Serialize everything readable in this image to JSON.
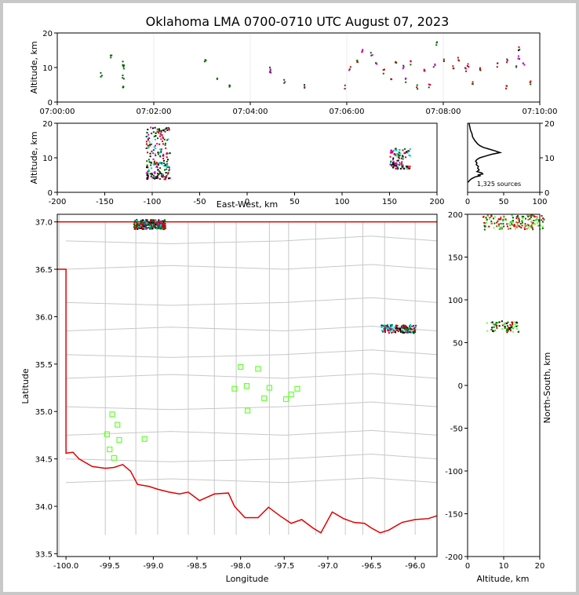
{
  "title": "Oklahoma LMA 0700-0710 UTC August 07, 2023",
  "colors": {
    "state_border": "#e00000",
    "county_lines": "#c8c8c8",
    "stations": "#66ff33",
    "profile_line": "#000000",
    "early_source": "#00cccc",
    "mid_source": "#006600",
    "late_source": "#cc0000"
  },
  "chart_data": [
    {
      "id": "time-height",
      "type": "scatter",
      "xlabel": "",
      "ylabel": "Altitude, km",
      "xticks": [
        "07:00:00",
        "07:02:00",
        "07:04:00",
        "07:06:00",
        "07:08:00",
        "07:10:00"
      ],
      "xlim_minutes": [
        0,
        10
      ],
      "ylim": [
        0,
        20
      ],
      "yticks": [
        0,
        10,
        20
      ],
      "clusters_time_min_alt_km": [
        [
          0.9,
          8.0
        ],
        [
          1.1,
          13.5
        ],
        [
          1.35,
          11.5
        ],
        [
          1.35,
          10.5
        ],
        [
          1.35,
          7.5
        ],
        [
          1.35,
          4.5
        ],
        [
          3.05,
          12.0
        ],
        [
          3.3,
          6.5
        ],
        [
          3.55,
          4.5
        ],
        [
          4.4,
          10.0
        ],
        [
          4.4,
          8.8
        ],
        [
          4.7,
          6.0
        ],
        [
          5.1,
          5.0
        ],
        [
          5.95,
          4.5
        ],
        [
          6.05,
          10.0
        ],
        [
          6.2,
          12.0
        ],
        [
          6.3,
          15.0
        ],
        [
          6.5,
          14.0
        ],
        [
          6.6,
          11.0
        ],
        [
          6.75,
          9.0
        ],
        [
          6.9,
          7.0
        ],
        [
          7.0,
          12.0
        ],
        [
          7.15,
          10.5
        ],
        [
          7.2,
          6.5
        ],
        [
          7.3,
          11.5
        ],
        [
          7.45,
          4.5
        ],
        [
          7.6,
          9.5
        ],
        [
          7.7,
          5.0
        ],
        [
          7.8,
          11.0
        ],
        [
          7.85,
          17.0
        ],
        [
          8.0,
          12.5
        ],
        [
          8.2,
          10.0
        ],
        [
          8.3,
          12.5
        ],
        [
          8.45,
          9.5
        ],
        [
          8.5,
          11.0
        ],
        [
          8.6,
          6.0
        ],
        [
          8.75,
          10.0
        ],
        [
          9.1,
          11.0
        ],
        [
          9.3,
          12.0
        ],
        [
          9.5,
          10.5
        ],
        [
          9.55,
          15.5
        ],
        [
          9.55,
          13.0
        ],
        [
          9.65,
          11.5
        ],
        [
          9.3,
          4.5
        ],
        [
          9.8,
          6.0
        ]
      ]
    },
    {
      "id": "ew-height",
      "type": "scatter",
      "xlabel": "East-West, km",
      "ylabel": "Altitude, km",
      "xlim": [
        -200,
        200
      ],
      "xticks": [
        -200,
        -150,
        -100,
        -50,
        0,
        50,
        100,
        150,
        200
      ],
      "ylim": [
        0,
        20
      ],
      "yticks": [
        0,
        10,
        20
      ],
      "cluster_1": {
        "x_range": [
          -107,
          -82
        ],
        "alt_range": [
          4,
          19
        ]
      },
      "cluster_2": {
        "x_range": [
          150,
          171
        ],
        "alt_range": [
          7,
          13
        ]
      }
    },
    {
      "id": "altitude-histogram",
      "type": "line",
      "xlim": [
        0,
        100
      ],
      "xticks": [
        0,
        50,
        100
      ],
      "ylim": [
        0,
        20
      ],
      "yticks": [
        0,
        10,
        20
      ],
      "annotation": "1,325 sources",
      "profile_count_alt_km": [
        [
          0,
          3
        ],
        [
          1,
          3
        ],
        [
          3,
          3.5
        ],
        [
          6,
          4
        ],
        [
          11,
          4.5
        ],
        [
          18,
          4.8
        ],
        [
          14,
          5
        ],
        [
          21,
          5.3
        ],
        [
          20,
          5.6
        ],
        [
          13,
          6
        ],
        [
          16,
          6.5
        ],
        [
          14,
          7
        ],
        [
          15,
          7.5
        ],
        [
          12,
          8
        ],
        [
          13,
          8.5
        ],
        [
          11,
          9
        ],
        [
          13,
          9.5
        ],
        [
          17,
          10
        ],
        [
          25,
          10.5
        ],
        [
          33,
          11
        ],
        [
          45,
          11.5
        ],
        [
          38,
          12
        ],
        [
          30,
          12.5
        ],
        [
          22,
          13
        ],
        [
          17,
          13.5
        ],
        [
          14,
          14
        ],
        [
          10,
          15
        ],
        [
          7,
          16
        ],
        [
          6,
          17
        ],
        [
          4,
          18
        ],
        [
          3,
          19
        ],
        [
          2,
          20
        ]
      ]
    },
    {
      "id": "plan-view",
      "type": "scatter",
      "xlabel": "Longitude",
      "ylabel": "Latitude",
      "xlim": [
        -100.1,
        -95.75
      ],
      "ylim": [
        33.47,
        37.08
      ],
      "xticks": [
        "-100.0",
        "-99.5",
        "-99.0",
        "-98.5",
        "-98.0",
        "-97.5",
        "-97.0",
        "-96.5",
        "-96.0"
      ],
      "yticks": [
        "33.5",
        "34.0",
        "34.5",
        "35.0",
        "35.5",
        "36.0",
        "36.5",
        "37.0"
      ],
      "stations": [
        [
          -99.47,
          34.97
        ],
        [
          -99.41,
          34.86
        ],
        [
          -99.53,
          34.76
        ],
        [
          -99.39,
          34.7
        ],
        [
          -99.5,
          34.6
        ],
        [
          -99.45,
          34.51
        ],
        [
          -99.1,
          34.71
        ],
        [
          -98.0,
          35.47
        ],
        [
          -97.8,
          35.45
        ],
        [
          -98.07,
          35.24
        ],
        [
          -97.93,
          35.27
        ],
        [
          -97.67,
          35.25
        ],
        [
          -97.35,
          35.24
        ],
        [
          -97.42,
          35.18
        ],
        [
          -97.73,
          35.14
        ],
        [
          -97.48,
          35.13
        ],
        [
          -97.92,
          35.01
        ]
      ],
      "cluster_1": {
        "center": [
          -99.05,
          36.98
        ]
      },
      "cluster_2": {
        "center": [
          -96.2,
          35.88
        ]
      }
    },
    {
      "id": "ns-height",
      "type": "scatter",
      "xlabel": "Altitude, km",
      "ylabel": "North-South, km",
      "xlim": [
        0,
        20
      ],
      "xticks": [
        0,
        10,
        20
      ],
      "ylim": [
        -200,
        200
      ],
      "yticks": [
        -200,
        -150,
        -100,
        -50,
        0,
        50,
        100,
        150,
        200
      ]
    }
  ]
}
